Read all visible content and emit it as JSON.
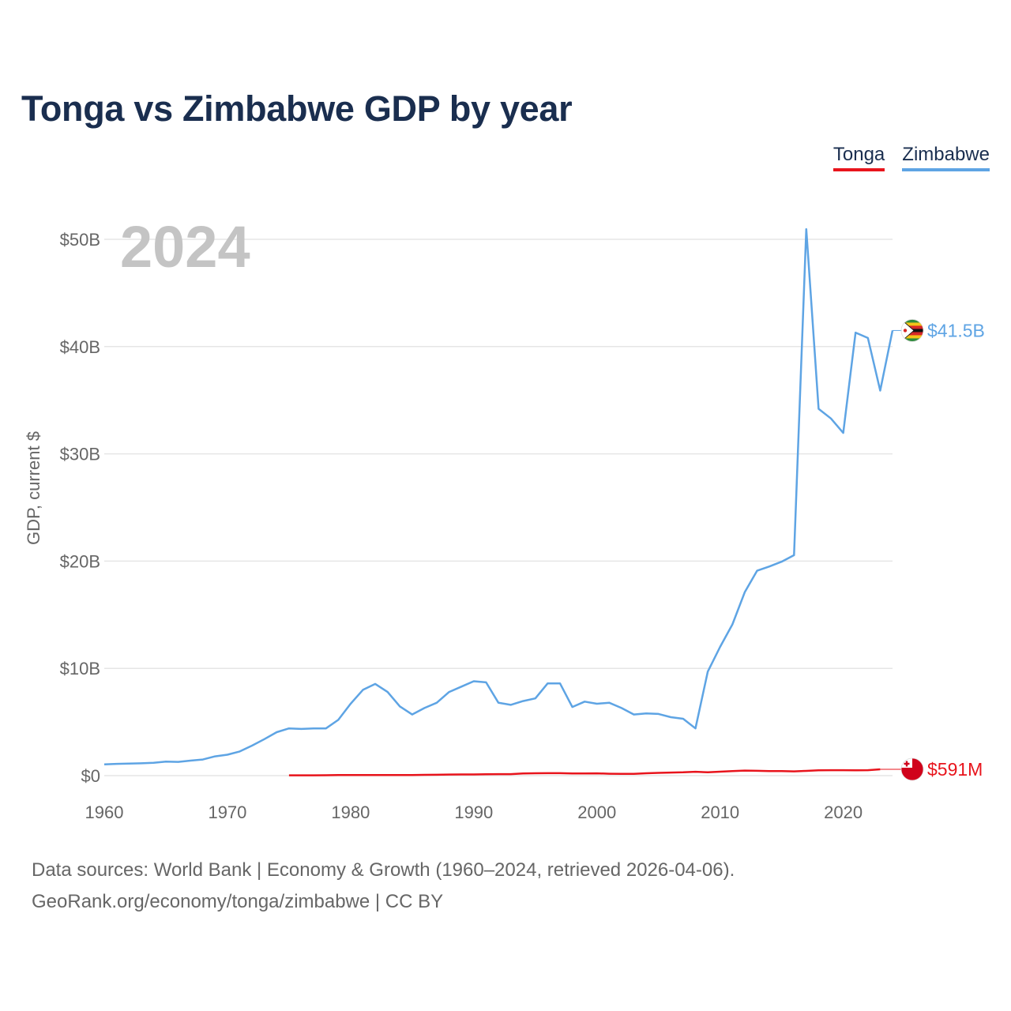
{
  "chart_data": {
    "type": "line",
    "title": "Tonga vs Zimbabwe GDP by year",
    "ylabel": "GDP, current $",
    "xlabel": "",
    "year_label": "2024",
    "xlim": [
      1960,
      2024
    ],
    "ylim": [
      0,
      50
    ],
    "y_unit": "billion US$",
    "x_ticks": [
      1960,
      1970,
      1980,
      1990,
      2000,
      2010,
      2020
    ],
    "y_ticks": [
      {
        "value": 0,
        "label": "$0"
      },
      {
        "value": 10,
        "label": "$10B"
      },
      {
        "value": 20,
        "label": "$20B"
      },
      {
        "value": 30,
        "label": "$30B"
      },
      {
        "value": 40,
        "label": "$40B"
      },
      {
        "value": 50,
        "label": "$50B"
      }
    ],
    "series": [
      {
        "name": "Tonga",
        "color": "#e8141c",
        "end_label": "$591M",
        "flag_icon": "tonga-flag-icon",
        "x": [
          1975,
          1976,
          1977,
          1978,
          1979,
          1980,
          1981,
          1982,
          1983,
          1984,
          1985,
          1986,
          1987,
          1988,
          1989,
          1990,
          1991,
          1992,
          1993,
          1994,
          1995,
          1996,
          1997,
          1998,
          1999,
          2000,
          2001,
          2002,
          2003,
          2004,
          2005,
          2006,
          2007,
          2008,
          2009,
          2010,
          2011,
          2012,
          2013,
          2014,
          2015,
          2016,
          2017,
          2018,
          2019,
          2020,
          2021,
          2022,
          2023
        ],
        "values": [
          0.03,
          0.03,
          0.03,
          0.04,
          0.05,
          0.05,
          0.06,
          0.06,
          0.06,
          0.06,
          0.06,
          0.07,
          0.08,
          0.1,
          0.11,
          0.11,
          0.13,
          0.14,
          0.14,
          0.2,
          0.22,
          0.23,
          0.23,
          0.2,
          0.2,
          0.21,
          0.18,
          0.16,
          0.17,
          0.22,
          0.26,
          0.29,
          0.31,
          0.36,
          0.31,
          0.37,
          0.42,
          0.47,
          0.45,
          0.43,
          0.43,
          0.4,
          0.44,
          0.49,
          0.51,
          0.51,
          0.49,
          0.51,
          0.59
        ]
      },
      {
        "name": "Zimbabwe",
        "color": "#5ea4e4",
        "end_label": "$41.5B",
        "flag_icon": "zimbabwe-flag-icon",
        "x": [
          1960,
          1961,
          1962,
          1963,
          1964,
          1965,
          1966,
          1967,
          1968,
          1969,
          1970,
          1971,
          1972,
          1973,
          1974,
          1975,
          1976,
          1977,
          1978,
          1979,
          1980,
          1981,
          1982,
          1983,
          1984,
          1985,
          1986,
          1987,
          1988,
          1989,
          1990,
          1991,
          1992,
          1993,
          1994,
          1995,
          1996,
          1997,
          1998,
          1999,
          2000,
          2001,
          2002,
          2003,
          2004,
          2005,
          2006,
          2007,
          2008,
          2009,
          2010,
          2011,
          2012,
          2013,
          2014,
          2015,
          2016,
          2017,
          2018,
          2019,
          2020,
          2021,
          2022,
          2023,
          2024
        ],
        "values": [
          1.05,
          1.1,
          1.12,
          1.15,
          1.2,
          1.3,
          1.28,
          1.4,
          1.5,
          1.8,
          1.95,
          2.25,
          2.8,
          3.4,
          4.05,
          4.4,
          4.35,
          4.4,
          4.4,
          5.2,
          6.7,
          8.0,
          8.55,
          7.8,
          6.45,
          5.7,
          6.3,
          6.8,
          7.8,
          8.3,
          8.8,
          8.7,
          6.8,
          6.6,
          6.95,
          7.2,
          8.6,
          8.6,
          6.4,
          6.9,
          6.7,
          6.8,
          6.3,
          5.7,
          5.8,
          5.75,
          5.45,
          5.3,
          4.4,
          9.7,
          12.0,
          14.1,
          17.1,
          19.1,
          19.5,
          19.95,
          20.55,
          50.95,
          34.2,
          33.3,
          31.95,
          41.3,
          40.8,
          35.9,
          41.5
        ]
      }
    ]
  },
  "legend": {
    "items": [
      "Tonga",
      "Zimbabwe"
    ]
  },
  "footer": {
    "line1": "Data sources: World Bank | Economy & Growth (1960–2024, retrieved 2026-04-06).",
    "line2": "GeoRank.org/economy/tonga/zimbabwe | CC BY"
  }
}
